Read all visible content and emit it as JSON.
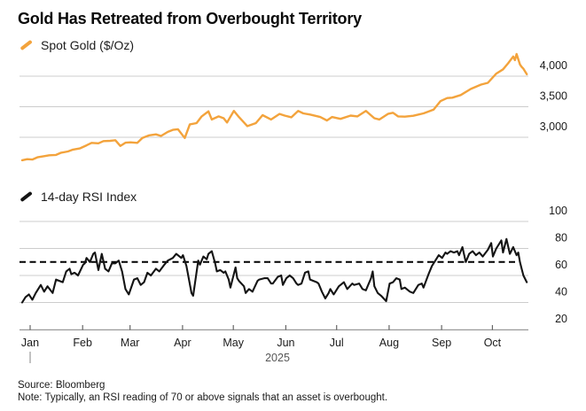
{
  "header": {
    "title": "Gold Has Retreated from Overbought Territory"
  },
  "legends": {
    "gold": {
      "label": "Spot Gold ($/Oz)",
      "color": "#F3A33C"
    },
    "rsi": {
      "label": "14-day RSI Index",
      "color": "#141414"
    }
  },
  "x_axis": {
    "months": [
      "Jan",
      "Feb",
      "Mar",
      "Apr",
      "May",
      "Jun",
      "Jul",
      "Aug",
      "Sep",
      "Oct"
    ],
    "month_start_days": [
      0,
      31,
      59,
      90,
      120,
      151,
      181,
      212,
      243,
      273
    ],
    "year_label": "2025"
  },
  "footer": {
    "source": "Source: Bloomberg",
    "note": "Note: Typically, an RSI reading of 70 or above signals that an asset is overbought."
  },
  "colors": {
    "gold_line": "#F3A33C",
    "rsi_line": "#141414",
    "gridline": "#CCCCCC",
    "axis_line": "#999999",
    "tick": "#666666",
    "tick_label": "#1A1A1A",
    "year_label": "#575757"
  },
  "chart_data": [
    {
      "type": "line",
      "name": "Spot Gold ($/Oz)",
      "color": "#F3A33C",
      "x_unit": "day-of-year-2025",
      "ylim": [
        2550,
        4480
      ],
      "yticks": [
        3000,
        3500,
        4000
      ],
      "grid": true,
      "legend_position": "top-left",
      "points": [
        [
          0,
          2625
        ],
        [
          3,
          2642
        ],
        [
          6,
          2636
        ],
        [
          9,
          2672
        ],
        [
          13,
          2692
        ],
        [
          16,
          2706
        ],
        [
          20,
          2712
        ],
        [
          23,
          2748
        ],
        [
          27,
          2768
        ],
        [
          30,
          2798
        ],
        [
          34,
          2818
        ],
        [
          38,
          2868
        ],
        [
          41,
          2908
        ],
        [
          45,
          2902
        ],
        [
          48,
          2938
        ],
        [
          52,
          2942
        ],
        [
          55,
          2952
        ],
        [
          58,
          2858
        ],
        [
          61,
          2912
        ],
        [
          64,
          2918
        ],
        [
          68,
          2908
        ],
        [
          71,
          2988
        ],
        [
          75,
          3032
        ],
        [
          79,
          3048
        ],
        [
          82,
          3022
        ],
        [
          86,
          3088
        ],
        [
          89,
          3122
        ],
        [
          92,
          3132
        ],
        [
          96,
          2988
        ],
        [
          99,
          3212
        ],
        [
          103,
          3232
        ],
        [
          106,
          3342
        ],
        [
          110,
          3425
        ],
        [
          112,
          3292
        ],
        [
          116,
          3342
        ],
        [
          119,
          3312
        ],
        [
          121,
          3242
        ],
        [
          125,
          3432
        ],
        [
          128,
          3332
        ],
        [
          133,
          3182
        ],
        [
          138,
          3232
        ],
        [
          142,
          3362
        ],
        [
          147,
          3292
        ],
        [
          152,
          3382
        ],
        [
          155,
          3355
        ],
        [
          159,
          3328
        ],
        [
          163,
          3432
        ],
        [
          166,
          3392
        ],
        [
          170,
          3372
        ],
        [
          176,
          3332
        ],
        [
          180,
          3275
        ],
        [
          183,
          3332
        ],
        [
          188,
          3302
        ],
        [
          194,
          3355
        ],
        [
          198,
          3342
        ],
        [
          203,
          3432
        ],
        [
          208,
          3312
        ],
        [
          211,
          3292
        ],
        [
          216,
          3382
        ],
        [
          219,
          3402
        ],
        [
          222,
          3342
        ],
        [
          226,
          3338
        ],
        [
          231,
          3352
        ],
        [
          237,
          3392
        ],
        [
          243,
          3452
        ],
        [
          247,
          3592
        ],
        [
          251,
          3642
        ],
        [
          254,
          3648
        ],
        [
          259,
          3692
        ],
        [
          265,
          3792
        ],
        [
          271,
          3862
        ],
        [
          275,
          3892
        ],
        [
          280,
          4042
        ],
        [
          284,
          4112
        ],
        [
          287,
          4212
        ],
        [
          290,
          4322
        ],
        [
          291,
          4262
        ],
        [
          292,
          4362
        ],
        [
          294,
          4192
        ],
        [
          295,
          4152
        ],
        [
          296,
          4122
        ],
        [
          298,
          4032
        ]
      ]
    },
    {
      "type": "line",
      "name": "14-day RSI Index",
      "color": "#141414",
      "x_unit": "day-of-year-2025",
      "ylim": [
        17,
        103
      ],
      "yticks": [
        20,
        40,
        60,
        80,
        100
      ],
      "grid": true,
      "threshold": {
        "value": 70,
        "style": "dashed"
      },
      "points": [
        [
          0,
          40
        ],
        [
          2,
          44
        ],
        [
          4,
          46
        ],
        [
          6,
          42
        ],
        [
          8,
          47
        ],
        [
          11,
          53
        ],
        [
          13,
          48
        ],
        [
          15,
          52
        ],
        [
          18,
          47
        ],
        [
          20,
          57
        ],
        [
          22,
          56
        ],
        [
          24,
          55
        ],
        [
          26,
          63
        ],
        [
          28,
          65
        ],
        [
          29,
          61
        ],
        [
          31,
          62
        ],
        [
          33,
          60
        ],
        [
          36,
          68
        ],
        [
          37,
          69
        ],
        [
          38,
          73
        ],
        [
          40,
          70
        ],
        [
          42,
          76
        ],
        [
          43,
          77
        ],
        [
          45,
          64
        ],
        [
          47,
          76
        ],
        [
          49,
          65
        ],
        [
          51,
          63
        ],
        [
          53,
          69
        ],
        [
          55,
          69
        ],
        [
          57,
          71
        ],
        [
          59,
          63
        ],
        [
          61,
          50
        ],
        [
          63,
          46
        ],
        [
          66,
          57
        ],
        [
          68,
          58
        ],
        [
          70,
          53
        ],
        [
          72,
          55
        ],
        [
          74,
          62
        ],
        [
          76,
          60
        ],
        [
          79,
          65
        ],
        [
          81,
          63
        ],
        [
          84,
          68
        ],
        [
          86,
          71
        ],
        [
          89,
          73
        ],
        [
          91,
          76
        ],
        [
          94,
          73
        ],
        [
          95,
          75
        ],
        [
          97,
          67
        ],
        [
          100,
          47
        ],
        [
          101,
          45
        ],
        [
          104,
          71
        ],
        [
          105,
          68
        ],
        [
          107,
          74
        ],
        [
          109,
          72
        ],
        [
          110,
          76
        ],
        [
          112,
          78
        ],
        [
          114,
          69
        ],
        [
          115,
          63
        ],
        [
          117,
          64
        ],
        [
          119,
          62
        ],
        [
          120,
          63
        ],
        [
          122,
          57
        ],
        [
          123,
          51
        ],
        [
          126,
          66
        ],
        [
          127,
          58
        ],
        [
          128,
          56
        ],
        [
          131,
          52
        ],
        [
          132,
          47
        ],
        [
          134,
          50
        ],
        [
          136,
          48
        ],
        [
          139,
          56
        ],
        [
          140,
          57
        ],
        [
          143,
          58
        ],
        [
          145,
          58
        ],
        [
          147,
          54
        ],
        [
          148,
          54
        ],
        [
          151,
          59
        ],
        [
          153,
          60
        ],
        [
          154,
          53
        ],
        [
          156,
          58
        ],
        [
          158,
          60
        ],
        [
          160,
          58
        ],
        [
          162,
          54
        ],
        [
          163,
          53
        ],
        [
          165,
          54
        ],
        [
          167,
          62
        ],
        [
          169,
          63
        ],
        [
          170,
          57
        ],
        [
          172,
          56
        ],
        [
          174,
          55
        ],
        [
          175,
          54
        ],
        [
          177,
          48
        ],
        [
          179,
          43
        ],
        [
          181,
          47
        ],
        [
          182,
          50
        ],
        [
          184,
          46
        ],
        [
          187,
          52
        ],
        [
          188,
          53
        ],
        [
          190,
          55
        ],
        [
          192,
          50
        ],
        [
          195,
          54
        ],
        [
          196,
          53
        ],
        [
          199,
          54
        ],
        [
          201,
          50
        ],
        [
          203,
          49
        ],
        [
          206,
          58
        ],
        [
          207,
          63
        ],
        [
          208,
          52
        ],
        [
          210,
          47
        ],
        [
          212,
          45
        ],
        [
          215,
          41
        ],
        [
          217,
          54
        ],
        [
          219,
          55
        ],
        [
          221,
          58
        ],
        [
          223,
          57
        ],
        [
          224,
          50
        ],
        [
          226,
          51
        ],
        [
          228,
          49
        ],
        [
          229,
          48
        ],
        [
          231,
          47
        ],
        [
          234,
          53
        ],
        [
          236,
          54
        ],
        [
          237,
          51
        ],
        [
          240,
          61
        ],
        [
          242,
          67
        ],
        [
          243,
          69
        ],
        [
          246,
          75
        ],
        [
          248,
          73
        ],
        [
          250,
          77
        ],
        [
          251,
          76
        ],
        [
          253,
          78
        ],
        [
          255,
          77
        ],
        [
          257,
          78
        ],
        [
          258,
          75
        ],
        [
          260,
          81
        ],
        [
          262,
          70
        ],
        [
          264,
          76
        ],
        [
          266,
          78
        ],
        [
          268,
          75
        ],
        [
          270,
          77
        ],
        [
          272,
          74
        ],
        [
          275,
          79
        ],
        [
          277,
          84
        ],
        [
          278,
          74
        ],
        [
          280,
          80
        ],
        [
          283,
          86
        ],
        [
          284,
          77
        ],
        [
          286,
          87
        ],
        [
          288,
          76
        ],
        [
          290,
          81
        ],
        [
          292,
          75
        ],
        [
          293,
          77
        ],
        [
          294,
          70
        ],
        [
          295,
          65
        ],
        [
          296,
          60
        ],
        [
          298,
          55
        ]
      ]
    }
  ]
}
